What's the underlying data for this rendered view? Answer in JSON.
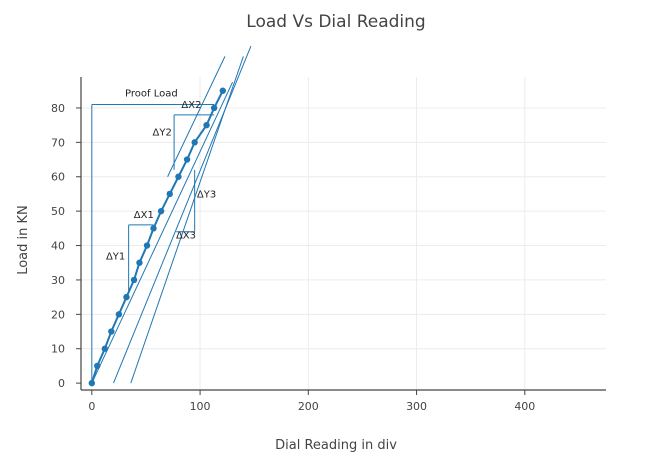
{
  "chart_data": {
    "type": "line",
    "title": "Load Vs Dial Reading",
    "xlabel": "Dial Reading in div",
    "ylabel": "Load in KN",
    "xlim": [
      -10,
      475
    ],
    "ylim": [
      -2,
      89
    ],
    "xticks": [
      0,
      100,
      200,
      300,
      400
    ],
    "yticks": [
      0,
      10,
      20,
      30,
      40,
      50,
      60,
      70,
      80
    ],
    "grid": true,
    "series": [
      {
        "name": "",
        "x": [
          0,
          5,
          12,
          18,
          25,
          32,
          39,
          44,
          51,
          57,
          64,
          72,
          80,
          88,
          95,
          106,
          113,
          121
        ],
        "y": [
          0,
          5,
          10,
          15,
          20,
          25,
          30,
          35,
          40,
          45,
          50,
          55,
          60,
          65,
          70,
          75,
          80,
          85
        ]
      }
    ],
    "construction_lines": [
      {
        "x": [
          0,
          130
        ],
        "y": [
          0,
          87.5
        ]
      },
      {
        "x": [
          20,
          147
        ],
        "y": [
          0,
          98
        ]
      },
      {
        "x": [
          36,
          140
        ],
        "y": [
          0,
          95
        ]
      },
      {
        "x": [
          70,
          123
        ],
        "y": [
          60,
          95
        ]
      },
      {
        "x": [
          0,
          0
        ],
        "y": [
          0,
          81
        ]
      },
      {
        "x": [
          0,
          113
        ],
        "y": [
          81,
          81
        ]
      },
      {
        "x": [
          76,
          113
        ],
        "y": [
          78,
          78
        ]
      },
      {
        "x": [
          76,
          76
        ],
        "y": [
          78,
          62
        ]
      },
      {
        "x": [
          34,
          57
        ],
        "y": [
          46,
          46
        ]
      },
      {
        "x": [
          34,
          34
        ],
        "y": [
          46,
          26
        ]
      },
      {
        "x": [
          78,
          95
        ],
        "y": [
          44,
          44
        ]
      },
      {
        "x": [
          95,
          95
        ],
        "y": [
          44,
          62
        ]
      }
    ],
    "annotations": [
      {
        "text": "Proof Load",
        "x": 55,
        "y": 83.3
      },
      {
        "text": "ΔX2",
        "x": 92,
        "y": 80
      },
      {
        "text": "ΔY2",
        "x": 65,
        "y": 72
      },
      {
        "text": "ΔX1",
        "x": 48,
        "y": 48
      },
      {
        "text": "ΔY1",
        "x": 22,
        "y": 36
      },
      {
        "text": "ΔY3",
        "x": 106,
        "y": 54
      },
      {
        "text": "ΔX3",
        "x": 87,
        "y": 42
      }
    ]
  },
  "style": {
    "series_color": "#1f77b4",
    "grid_color": "#ececec",
    "axis_color": "#444444"
  }
}
